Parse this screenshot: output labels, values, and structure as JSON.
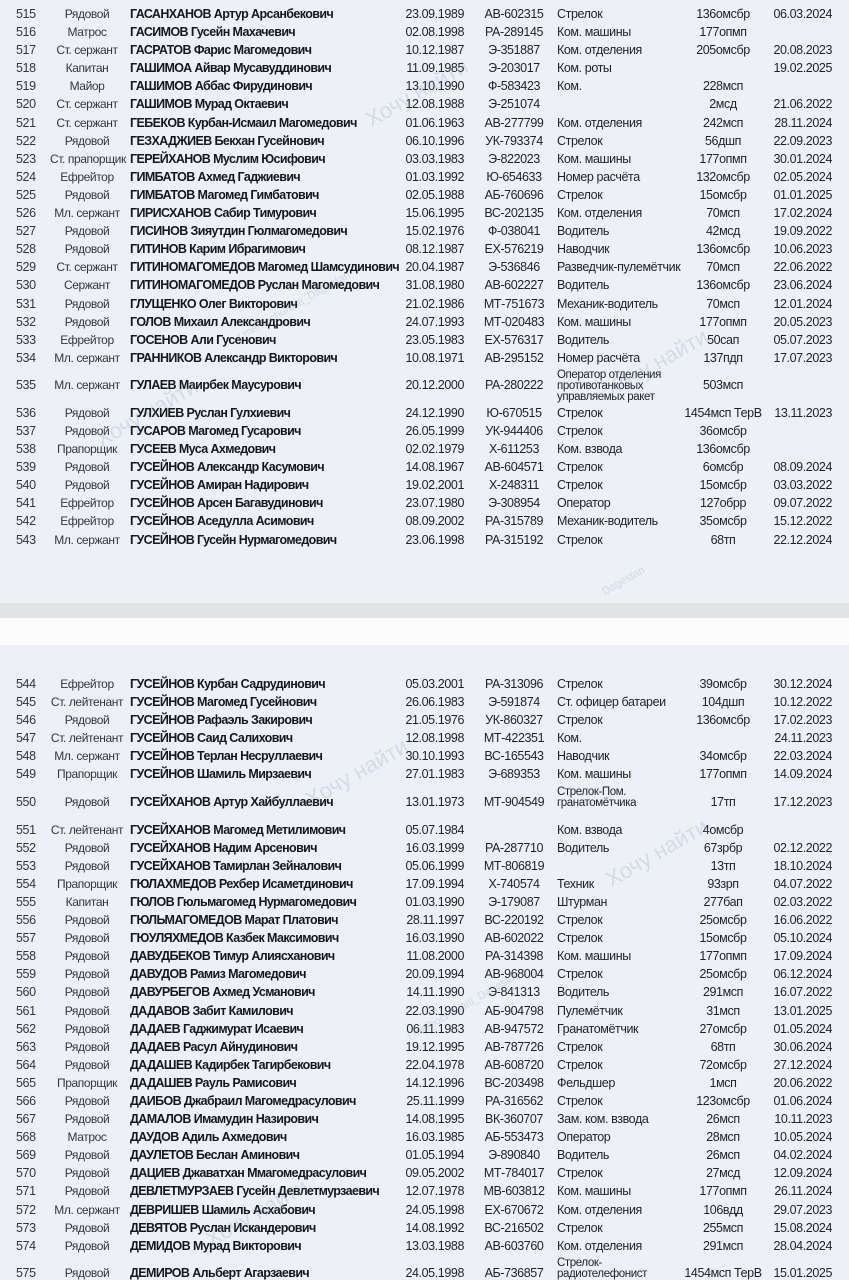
{
  "watermark": {
    "main": "Хочу найти",
    "handle": "t.me/hochunaiti_Dagestan",
    "short": "Dagestan"
  },
  "columns": [
    "num",
    "rank",
    "name",
    "dob",
    "id",
    "position",
    "unit",
    "date"
  ],
  "sections": [
    {
      "rows": [
        [
          "515",
          "Рядовой",
          "ГАСАНХАНОВ Артур Арсанбекович",
          "23.09.1989",
          "АВ-602315",
          "Стрелок",
          "136омсбр",
          "06.03.2024"
        ],
        [
          "516",
          "Матрос",
          "ГАСИМОВ Гусейн Махачевич",
          "02.08.1998",
          "РА-289145",
          "Ком. машины",
          "177опмп",
          ""
        ],
        [
          "517",
          "Ст. сержант",
          "ГАСРАТОВ Фарис Магомедович",
          "10.12.1987",
          "Э-351887",
          "Ком. отделения",
          "205омсбр",
          "20.08.2023"
        ],
        [
          "518",
          "Капитан",
          "ГАШИМОА Айвар Мусавуддинович",
          "11.09.1985",
          "Э-203017",
          "Ком. роты",
          "",
          "19.02.2025"
        ],
        [
          "519",
          "Майор",
          "ГАШИМОВ Аббас Фирудинович",
          "13.10.1990",
          "Ф-583423",
          "Ком.",
          "228мсп",
          ""
        ],
        [
          "520",
          "Ст. сержант",
          "ГАШИМОВ Мурад Октаевич",
          "12.08.1988",
          "Э-251074",
          "",
          "2мсд",
          "21.06.2022"
        ],
        [
          "521",
          "Ст. сержант",
          "ГЕБЕКОВ Курбан-Исмаил Магомедович",
          "01.06.1963",
          "АВ-277799",
          "Ком. отделения",
          "242мсп",
          "28.11.2024"
        ],
        [
          "522",
          "Рядовой",
          "ГЕЗХАДЖИЕВ Бекхан Гусейнович",
          "06.10.1996",
          "УК-793374",
          "Стрелок",
          "56дшп",
          "22.09.2023"
        ],
        [
          "523",
          "Ст. прапорщик",
          "ГЕРЕЙХАНОВ Муслим Юсифович",
          "03.03.1983",
          "Э-822023",
          "Ком. машины",
          "177опмп",
          "30.01.2024"
        ],
        [
          "524",
          "Ефрейтор",
          "ГИМБАТОВ Ахмед Гаджиевич",
          "01.03.1992",
          "Ю-654633",
          "Номер расчёта",
          "132омсбр",
          "02.05.2024"
        ],
        [
          "525",
          "Рядовой",
          "ГИМБАТОВ Магомед Гимбатович",
          "02.05.1988",
          "АБ-760696",
          "Стрелок",
          "15омсбр",
          "01.01.2025"
        ],
        [
          "526",
          "Мл. сержант",
          "ГИРИСХАНОВ Сабир Тимурович",
          "15.06.1995",
          "ВС-202135",
          "Ком. отделения",
          "70мсп",
          "17.02.2024"
        ],
        [
          "527",
          "Рядовой",
          "ГИСИНОВ Зияутдин Гюлмагомедович",
          "15.02.1976",
          "Ф-038041",
          "Водитель",
          "42мсд",
          "19.09.2022"
        ],
        [
          "528",
          "Рядовой",
          "ГИТИНОВ Карим Ибрагимович",
          "08.12.1987",
          "ЕХ-576219",
          "Наводчик",
          "136омсбр",
          "10.06.2023"
        ],
        [
          "529",
          "Ст. сержант",
          "ГИТИНОМАГОМЕДОВ Магомед Шамсудинович",
          "20.04.1987",
          "Э-536846",
          "Разведчик-пулемётчик",
          "70мсп",
          "22.06.2022"
        ],
        [
          "530",
          "Сержант",
          "ГИТИНОМАГОМЕДОВ Руслан Магомедович",
          "31.08.1980",
          "АВ-602227",
          "Водитель",
          "136омсбр",
          "23.06.2024"
        ],
        [
          "531",
          "Рядовой",
          "ГЛУЩЕНКО Олег Викторович",
          "21.02.1986",
          "МТ-751673",
          "Механик-водитель",
          "70мсп",
          "12.01.2024"
        ],
        [
          "532",
          "Рядовой",
          "ГОЛОВ Михаил Александрович",
          "24.07.1993",
          "МТ-020483",
          "Ком. машины",
          "177опмп",
          "20.05.2023"
        ],
        [
          "533",
          "Ефрейтор",
          "ГОСЕНОВ Али Гусенович",
          "23.05.1983",
          "ЕХ-576317",
          "Водитель",
          "50сап",
          "05.07.2023"
        ],
        [
          "534",
          "Мл. сержант",
          "ГРАННИКОВ Александр Викторович",
          "10.08.1971",
          "АВ-295152",
          "Номер расчёта",
          "137пдп",
          "17.07.2023"
        ],
        [
          "535",
          "Мл. сержант",
          "ГУЛАЕВ Маирбек Маусурович",
          "20.12.2000",
          "РА-280222",
          "Оператор отделения\nпротивотанковых\nуправляемых ракет",
          "503мсп",
          ""
        ],
        [
          "536",
          "Рядовой",
          "ГУЛХИЕВ Руслан Гулхиевич",
          "24.12.1990",
          "Ю-670515",
          "Стрелок",
          "1454мсп ТерВ",
          "13.11.2023"
        ],
        [
          "537",
          "Рядовой",
          "ГУСАРОВ Магомед Гусарович",
          "26.05.1999",
          "УК-944406",
          "Стрелок",
          "36омсбр",
          ""
        ],
        [
          "538",
          "Прапорщик",
          "ГУСЕЕВ Муса Ахмедович",
          "02.02.1979",
          "Х-611253",
          "Ком. взвода",
          "136омсбр",
          ""
        ],
        [
          "539",
          "Рядовой",
          "ГУСЕЙНОВ Александр Касумович",
          "14.08.1967",
          "АВ-604571",
          "Стрелок",
          "6омсбр",
          "08.09.2024"
        ],
        [
          "540",
          "Рядовой",
          "ГУСЕЙНОВ Амиран Надирович",
          "19.02.2001",
          "Х-248311",
          "Стрелок",
          "15омсбр",
          "03.03.2022"
        ],
        [
          "541",
          "Ефрейтор",
          "ГУСЕЙНОВ Арсен Багавудинович",
          "23.07.1980",
          "Э-308954",
          "Оператор",
          "127обрр",
          "09.07.2022"
        ],
        [
          "542",
          "Ефрейтор",
          "ГУСЕЙНОВ Аседулла Асимович",
          "08.09.2002",
          "РА-315789",
          "Механик-водитель",
          "35омсбр",
          "15.12.2022"
        ],
        [
          "543",
          "Мл. сержант",
          "ГУСЕЙНОВ Гусейн Нурмагомедович",
          "23.06.1998",
          "РА-315192",
          "Стрелок",
          "68тп",
          "22.12.2024"
        ]
      ]
    },
    {
      "rows": [
        [
          "544",
          "Ефрейтор",
          "ГУСЕЙНОВ Курбан Садрудинович",
          "05.03.2001",
          "РА-313096",
          "Стрелок",
          "39омсбр",
          "30.12.2024"
        ],
        [
          "545",
          "Ст. лейтенант",
          "ГУСЕЙНОВ Магомед Гусейнович",
          "26.06.1983",
          "Э-591874",
          "Ст. офицер батареи",
          "104дшп",
          "10.12.2022"
        ],
        [
          "546",
          "Рядовой",
          "ГУСЕЙНОВ Рафаэль Закирович",
          "21.05.1976",
          "УК-860327",
          "Стрелок",
          "136омсбр",
          "17.02.2023"
        ],
        [
          "547",
          "Ст. лейтенант",
          "ГУСЕЙНОВ Саид Салихович",
          "12.08.1998",
          "МТ-422351",
          "Ком.",
          "",
          "24.11.2023"
        ],
        [
          "548",
          "Мл. сержант",
          "ГУСЕЙНОВ Терлан Несруллаевич",
          "30.10.1993",
          "ВС-165543",
          "Наводчик",
          "34омсбр",
          "22.03.2024"
        ],
        [
          "549",
          "Прапорщик",
          "ГУСЕЙНОВ Шамиль Мирзаевич",
          "27.01.1983",
          "Э-689353",
          "Ком. машины",
          "177опмп",
          "14.09.2024"
        ],
        [
          "550",
          "Рядовой",
          "ГУСЕЙХАНОВ Артур Хайбуллаевич",
          "13.01.1973",
          "МТ-904549",
          "Стрелок-Пом.\nгранатомётчика",
          "17тп",
          "17.12.2023"
        ],
        [
          "551",
          "Ст. лейтенант",
          "ГУСЕЙХАНОВ Магомед Метилимович",
          "05.07.1984",
          "",
          "Ком. взвода",
          "4омсбр",
          ""
        ],
        [
          "552",
          "Рядовой",
          "ГУСЕЙХАНОВ Надим Арсенович",
          "16.03.1999",
          "РА-287710",
          "Водитель",
          "67зрбр",
          "02.12.2022"
        ],
        [
          "553",
          "Рядовой",
          "ГУСЕЙХАНОВ Тамирлан Зейналович",
          "05.06.1999",
          "МТ-806819",
          "",
          "13тп",
          "18.10.2024"
        ],
        [
          "554",
          "Прапорщик",
          "ГЮЛАХМЕДОВ Рехбер Исаметдинович",
          "17.09.1994",
          "Х-740574",
          "Техник",
          "93зрп",
          "04.07.2022"
        ],
        [
          "555",
          "Капитан",
          "ГЮЛОВ Гюльмагомед Нурмагомедович",
          "01.03.1990",
          "Э-179087",
          "Штурман",
          "277бап",
          "02.03.2022"
        ],
        [
          "556",
          "Рядовой",
          "ГЮЛЬМАГОМЕДОВ Марат Платович",
          "28.11.1997",
          "ВС-220192",
          "Стрелок",
          "25омсбр",
          "16.06.2022"
        ],
        [
          "557",
          "Рядовой",
          "ГЮУЛЯХМЕДОВ Казбек Максимович",
          "16.03.1990",
          "АВ-602022",
          "Стрелок",
          "15омсбр",
          "05.10.2024"
        ],
        [
          "558",
          "Рядовой",
          "ДАВУДБЕКОВ Тимур Алиясханович",
          "11.08.2000",
          "РА-314398",
          "Ком. машины",
          "177опмп",
          "17.09.2024"
        ],
        [
          "559",
          "Рядовой",
          "ДАВУДОВ Рамиз Магомедович",
          "20.09.1994",
          "АВ-968004",
          "Стрелок",
          "25омсбр",
          "06.12.2024"
        ],
        [
          "560",
          "Рядовой",
          "ДАВУРБЕГОВ Ахмед Усманович",
          "14.11.1990",
          "Э-841313",
          "Водитель",
          "291мсп",
          "16.07.2022"
        ],
        [
          "561",
          "Рядовой",
          "ДАДАВОВ Забит Камилович",
          "22.03.1990",
          "АБ-904798",
          "Пулемётчик",
          "31мсп",
          "13.01.2025"
        ],
        [
          "562",
          "Рядовой",
          "ДАДАЕВ Гаджимурат Исаевич",
          "06.11.1983",
          "АВ-947572",
          "Гранатомётчик",
          "27омсбр",
          "01.05.2024"
        ],
        [
          "563",
          "Рядовой",
          "ДАДАЕВ Расул Айнудинович",
          "19.12.1995",
          "АВ-787726",
          "Стрелок",
          "68тп",
          "30.06.2024"
        ],
        [
          "564",
          "Рядовой",
          "ДАДАШЕВ Кадирбек Тагирбекович",
          "22.04.1978",
          "АВ-608720",
          "Стрелок",
          "72омсбр",
          "27.12.2024"
        ],
        [
          "565",
          "Прапорщик",
          "ДАДАШЕВ Рауль Рамисович",
          "14.12.1996",
          "ВС-203498",
          "Фельдшер",
          "1мсп",
          "20.06.2022"
        ],
        [
          "566",
          "Рядовой",
          "ДАИБОВ Джабраил Магомедрасулович",
          "25.11.1999",
          "РА-316562",
          "Стрелок",
          "123омсбр",
          "01.06.2024"
        ],
        [
          "567",
          "Рядовой",
          "ДАМАЛОВ Имамудин Назирович",
          "14.08.1995",
          "ВК-360707",
          "Зам. ком. взвода",
          "26мсп",
          "10.11.2023"
        ],
        [
          "568",
          "Матрос",
          "ДАУДОВ Адиль Ахмедович",
          "16.03.1985",
          "АБ-553473",
          "Оператор",
          "28мсп",
          "10.05.2024"
        ],
        [
          "569",
          "Рядовой",
          "ДАУЛЕТОВ Беслан Аминович",
          "01.05.1994",
          "Э-890840",
          "Водитель",
          "26мсп",
          "04.02.2024"
        ],
        [
          "570",
          "Рядовой",
          "ДАЦИЕВ Джаватхан Ммагомедрасулович",
          "09.05.2002",
          "МТ-784017",
          "Стрелок",
          "27мсд",
          "12.09.2024"
        ],
        [
          "571",
          "Рядовой",
          "ДЕВЛЕТМУРЗАЕВ Гусейн Девлетмурзаевич",
          "12.07.1978",
          "МВ-603812",
          "Ком. машины",
          "177опмп",
          "26.11.2024"
        ],
        [
          "572",
          "Мл. сержант",
          "ДЕВРИШЕВ Шамиль Асхабович",
          "24.05.1998",
          "ЕХ-670672",
          "Ком. отделения",
          "106вдд",
          "29.07.2023"
        ],
        [
          "573",
          "Рядовой",
          "ДЕВЯТОВ Руслан Искандерович",
          "14.08.1992",
          "ВС-216502",
          "Стрелок",
          "255мсп",
          "15.08.2024"
        ],
        [
          "574",
          "Рядовой",
          "ДЕМИДОВ Мурад Викторович",
          "13.03.1988",
          "АВ-603760",
          "Ком. отделения",
          "291мсп",
          "28.04.2024"
        ],
        [
          "575",
          "Рядовой",
          "ДЕМИРОВ Альберт Агарзаевич",
          "24.05.1998",
          "АБ-736857",
          "Стрелок-\nрадиотелефонист",
          "1454мсп ТерВ",
          "15.01.2025"
        ]
      ]
    }
  ]
}
